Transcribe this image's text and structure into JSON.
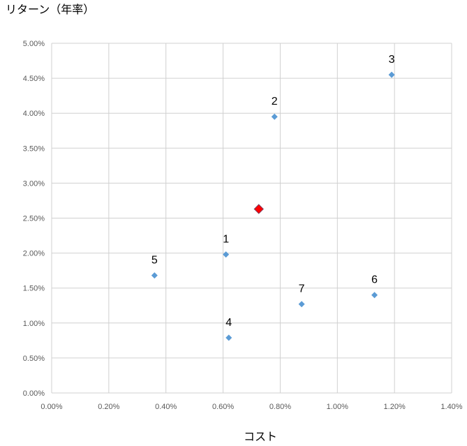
{
  "chart_data": {
    "type": "scatter",
    "title": "",
    "xlabel": "コスト",
    "ylabel": "リターン（年率）",
    "xlim": [
      0,
      1.4
    ],
    "ylim": [
      0,
      5.0
    ],
    "x_ticks": [
      "0.00%",
      "0.20%",
      "0.40%",
      "0.60%",
      "0.80%",
      "1.00%",
      "1.20%",
      "1.40%"
    ],
    "y_ticks": [
      "0.00%",
      "0.50%",
      "1.00%",
      "1.50%",
      "2.00%",
      "2.50%",
      "3.00%",
      "3.50%",
      "4.00%",
      "4.50%",
      "5.00%"
    ],
    "grid": true,
    "units": "%",
    "points": [
      {
        "label": "1",
        "x": 0.61,
        "y": 1.98
      },
      {
        "label": "2",
        "x": 0.78,
        "y": 3.95
      },
      {
        "label": "3",
        "x": 1.19,
        "y": 4.55
      },
      {
        "label": "4",
        "x": 0.62,
        "y": 0.79
      },
      {
        "label": "5",
        "x": 0.36,
        "y": 1.68
      },
      {
        "label": "6",
        "x": 1.13,
        "y": 1.4
      },
      {
        "label": "7",
        "x": 0.875,
        "y": 1.27
      }
    ],
    "highlight": {
      "x": 0.725,
      "y": 2.63
    },
    "colors": {
      "points": "#5B9BD5",
      "highlight": "#FF0000",
      "highlight_border": "#7F3F5F",
      "grid": "#D0D0D0"
    }
  }
}
